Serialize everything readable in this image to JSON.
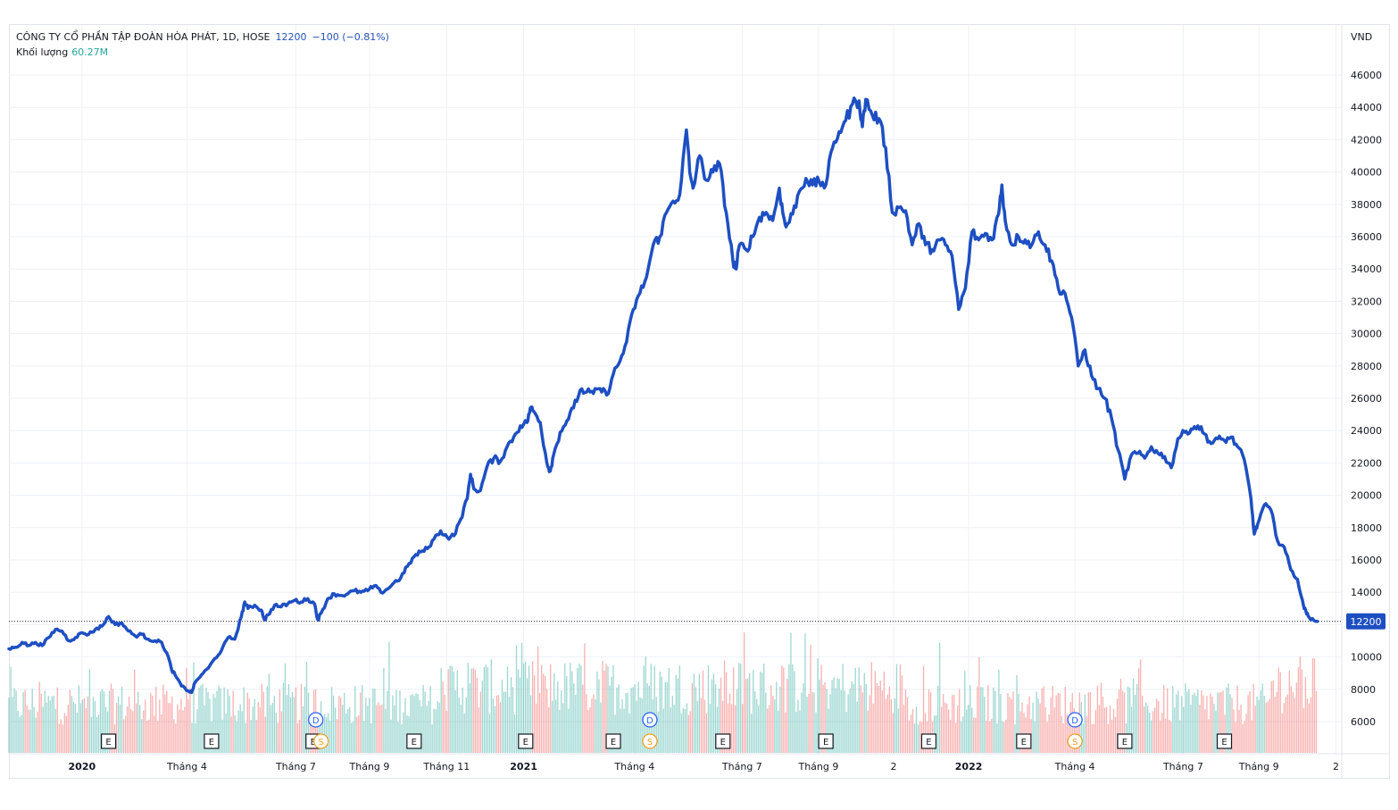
{
  "legend": {
    "title": "CÔNG TY CỔ PHẦN TẬP ĐOÀN HÒA PHÁT, 1D, HOSE",
    "last_price": "12200",
    "change": "−100 (−0.81%)",
    "volume_label": "Khối lượng",
    "volume_value": "60.27M"
  },
  "colors": {
    "line": "#1e4fc2",
    "grid": "#eef1f6",
    "vol_up": "#26a69a",
    "vol_down": "#ef5350",
    "price_label_bg": "#1e4fc2",
    "dividend_marker": "#2962ff",
    "split_marker": "#f0a020"
  },
  "chart_data": {
    "type": "line",
    "title": "CÔNG TY CỔ PHẦN TẬP ĐOÀN HÒA PHÁT, 1D, HOSE",
    "currency": "VND",
    "ylim": [
      3700,
      47600
    ],
    "yticks": [
      6000,
      8000,
      10000,
      12000,
      14000,
      16000,
      18000,
      20000,
      22000,
      24000,
      26000,
      28000,
      30000,
      32000,
      34000,
      36000,
      38000,
      40000,
      42000,
      44000,
      46000
    ],
    "current_price": 12200,
    "current_price_label": "12200",
    "time_range": [
      "2019-11",
      "2022-11"
    ],
    "x_labels": [
      {
        "t": 0.11,
        "label": "2020",
        "bold": true
      },
      {
        "t": 0.268,
        "label": "Tháng 4",
        "bold": false
      },
      {
        "t": 0.432,
        "label": "Tháng 7",
        "bold": false
      },
      {
        "t": 0.543,
        "label": "Tháng 9",
        "bold": false
      },
      {
        "t": 0.659,
        "label": "Tháng 11",
        "bold": false
      },
      {
        "t": 0.775,
        "label": "2021",
        "bold": true
      },
      {
        "t": 0.942,
        "label": "Tháng 4",
        "bold": false
      },
      {
        "t": 1.104,
        "label": "Tháng 7",
        "bold": false
      },
      {
        "t": 1.219,
        "label": "Tháng 9",
        "bold": false
      },
      {
        "t": 1.332,
        "label": "2",
        "bold": false
      },
      {
        "t": 1.445,
        "label": "2022",
        "bold": true
      },
      {
        "t": 1.605,
        "label": "Tháng 4",
        "bold": false
      },
      {
        "t": 1.768,
        "label": "Tháng 7",
        "bold": false
      },
      {
        "t": 1.882,
        "label": "Tháng 9",
        "bold": false
      },
      {
        "t": 1.998,
        "label": "2",
        "bold": false
      }
    ],
    "price_series": [
      [
        0.0,
        10500
      ],
      [
        0.01,
        10600
      ],
      [
        0.02,
        10900
      ],
      [
        0.03,
        10700
      ],
      [
        0.04,
        10900
      ],
      [
        0.05,
        10700
      ],
      [
        0.06,
        11200
      ],
      [
        0.07,
        11700
      ],
      [
        0.08,
        11600
      ],
      [
        0.09,
        11000
      ],
      [
        0.1,
        11200
      ],
      [
        0.11,
        11500
      ],
      [
        0.12,
        11400
      ],
      [
        0.13,
        11700
      ],
      [
        0.14,
        11900
      ],
      [
        0.15,
        12500
      ],
      [
        0.16,
        12000
      ],
      [
        0.17,
        12100
      ],
      [
        0.18,
        11600
      ],
      [
        0.19,
        11300
      ],
      [
        0.2,
        11400
      ],
      [
        0.21,
        11100
      ],
      [
        0.22,
        11000
      ],
      [
        0.23,
        10900
      ],
      [
        0.24,
        10000
      ],
      [
        0.245,
        9200
      ],
      [
        0.25,
        8900
      ],
      [
        0.26,
        8200
      ],
      [
        0.27,
        7900
      ],
      [
        0.275,
        7800
      ],
      [
        0.28,
        8400
      ],
      [
        0.29,
        8900
      ],
      [
        0.3,
        9300
      ],
      [
        0.31,
        9900
      ],
      [
        0.32,
        10400
      ],
      [
        0.33,
        11200
      ],
      [
        0.34,
        11100
      ],
      [
        0.35,
        12500
      ],
      [
        0.355,
        13400
      ],
      [
        0.36,
        13000
      ],
      [
        0.37,
        13200
      ],
      [
        0.38,
        12900
      ],
      [
        0.385,
        12300
      ],
      [
        0.39,
        12600
      ],
      [
        0.4,
        13200
      ],
      [
        0.41,
        13100
      ],
      [
        0.42,
        13300
      ],
      [
        0.43,
        13500
      ],
      [
        0.44,
        13400
      ],
      [
        0.45,
        13600
      ],
      [
        0.46,
        13300
      ],
      [
        0.465,
        12300
      ],
      [
        0.47,
        12700
      ],
      [
        0.48,
        13600
      ],
      [
        0.49,
        13900
      ],
      [
        0.5,
        13800
      ],
      [
        0.51,
        13900
      ],
      [
        0.52,
        14100
      ],
      [
        0.53,
        14000
      ],
      [
        0.54,
        14100
      ],
      [
        0.55,
        14400
      ],
      [
        0.56,
        14000
      ],
      [
        0.57,
        14200
      ],
      [
        0.58,
        14600
      ],
      [
        0.59,
        14900
      ],
      [
        0.6,
        15600
      ],
      [
        0.61,
        16200
      ],
      [
        0.62,
        16500
      ],
      [
        0.63,
        16700
      ],
      [
        0.64,
        17300
      ],
      [
        0.65,
        17800
      ],
      [
        0.66,
        17400
      ],
      [
        0.67,
        17500
      ],
      [
        0.68,
        18500
      ],
      [
        0.69,
        19800
      ],
      [
        0.695,
        21300
      ],
      [
        0.7,
        20400
      ],
      [
        0.71,
        20300
      ],
      [
        0.72,
        21800
      ],
      [
        0.73,
        22300
      ],
      [
        0.74,
        22100
      ],
      [
        0.75,
        23000
      ],
      [
        0.76,
        23600
      ],
      [
        0.77,
        24300
      ],
      [
        0.78,
        24500
      ],
      [
        0.785,
        25400
      ],
      [
        0.79,
        25200
      ],
      [
        0.8,
        24500
      ],
      [
        0.81,
        22000
      ],
      [
        0.815,
        21500
      ],
      [
        0.82,
        22500
      ],
      [
        0.83,
        23900
      ],
      [
        0.84,
        24600
      ],
      [
        0.85,
        25400
      ],
      [
        0.86,
        26500
      ],
      [
        0.87,
        26400
      ],
      [
        0.88,
        26300
      ],
      [
        0.89,
        26600
      ],
      [
        0.9,
        26200
      ],
      [
        0.91,
        27500
      ],
      [
        0.92,
        28300
      ],
      [
        0.93,
        29500
      ],
      [
        0.94,
        31500
      ],
      [
        0.95,
        32500
      ],
      [
        0.96,
        33500
      ],
      [
        0.97,
        35500
      ],
      [
        0.98,
        36000
      ],
      [
        0.99,
        37500
      ],
      [
        1.0,
        38200
      ],
      [
        1.01,
        38600
      ],
      [
        1.02,
        42600
      ],
      [
        1.025,
        40000
      ],
      [
        1.03,
        39000
      ],
      [
        1.04,
        41000
      ],
      [
        1.05,
        39500
      ],
      [
        1.06,
        40000
      ],
      [
        1.07,
        40500
      ],
      [
        1.08,
        37500
      ],
      [
        1.09,
        34500
      ],
      [
        1.095,
        34000
      ],
      [
        1.1,
        35500
      ],
      [
        1.11,
        35200
      ],
      [
        1.12,
        36000
      ],
      [
        1.13,
        37200
      ],
      [
        1.14,
        37500
      ],
      [
        1.15,
        37000
      ],
      [
        1.16,
        39000
      ],
      [
        1.165,
        37500
      ],
      [
        1.17,
        36600
      ],
      [
        1.18,
        37400
      ],
      [
        1.19,
        38800
      ],
      [
        1.2,
        39600
      ],
      [
        1.21,
        39200
      ],
      [
        1.22,
        39400
      ],
      [
        1.23,
        39200
      ],
      [
        1.24,
        41500
      ],
      [
        1.25,
        42500
      ],
      [
        1.26,
        43200
      ],
      [
        1.27,
        44200
      ],
      [
        1.28,
        44400
      ],
      [
        1.285,
        42800
      ],
      [
        1.29,
        44500
      ],
      [
        1.3,
        43500
      ],
      [
        1.31,
        43300
      ],
      [
        1.32,
        41500
      ],
      [
        1.33,
        37500
      ],
      [
        1.34,
        37800
      ],
      [
        1.35,
        37600
      ],
      [
        1.36,
        35500
      ],
      [
        1.37,
        36800
      ],
      [
        1.38,
        35500
      ],
      [
        1.39,
        35200
      ],
      [
        1.4,
        35800
      ],
      [
        1.41,
        35500
      ],
      [
        1.42,
        34800
      ],
      [
        1.43,
        31500
      ],
      [
        1.44,
        32800
      ],
      [
        1.45,
        36300
      ],
      [
        1.46,
        35800
      ],
      [
        1.47,
        36200
      ],
      [
        1.48,
        35800
      ],
      [
        1.49,
        37400
      ],
      [
        1.495,
        39200
      ],
      [
        1.5,
        37000
      ],
      [
        1.51,
        35500
      ],
      [
        1.52,
        36000
      ],
      [
        1.53,
        35800
      ],
      [
        1.54,
        35500
      ],
      [
        1.55,
        36300
      ],
      [
        1.56,
        35500
      ],
      [
        1.57,
        34500
      ],
      [
        1.58,
        32800
      ],
      [
        1.59,
        32500
      ],
      [
        1.6,
        31000
      ],
      [
        1.61,
        28000
      ],
      [
        1.62,
        29000
      ],
      [
        1.63,
        27400
      ],
      [
        1.64,
        26600
      ],
      [
        1.65,
        26000
      ],
      [
        1.66,
        24800
      ],
      [
        1.67,
        22800
      ],
      [
        1.68,
        21000
      ],
      [
        1.69,
        22500
      ],
      [
        1.7,
        22600
      ],
      [
        1.71,
        22300
      ],
      [
        1.72,
        23000
      ],
      [
        1.73,
        22600
      ],
      [
        1.74,
        22400
      ],
      [
        1.75,
        21700
      ],
      [
        1.76,
        23500
      ],
      [
        1.77,
        23900
      ],
      [
        1.78,
        24100
      ],
      [
        1.79,
        24300
      ],
      [
        1.8,
        23800
      ],
      [
        1.81,
        23200
      ],
      [
        1.82,
        23500
      ],
      [
        1.83,
        23400
      ],
      [
        1.84,
        23600
      ],
      [
        1.85,
        23000
      ],
      [
        1.86,
        22200
      ],
      [
        1.87,
        19800
      ],
      [
        1.875,
        17600
      ],
      [
        1.88,
        18200
      ],
      [
        1.89,
        19400
      ],
      [
        1.9,
        19100
      ],
      [
        1.91,
        17200
      ],
      [
        1.92,
        16800
      ],
      [
        1.93,
        15400
      ],
      [
        1.94,
        14800
      ],
      [
        1.95,
        13000
      ],
      [
        1.955,
        12700
      ],
      [
        1.96,
        12300
      ],
      [
        1.97,
        12200
      ]
    ],
    "volume_ylim": [
      0,
      100
    ],
    "volume_series_note": "volume histogram, relative heights",
    "volume_peaks": [
      [
        0.69,
        48
      ],
      [
        0.85,
        37
      ],
      [
        1.08,
        43
      ],
      [
        1.335,
        29
      ],
      [
        1.46,
        51
      ],
      [
        1.95,
        24
      ]
    ],
    "events": [
      {
        "t": 0.15,
        "type": "E"
      },
      {
        "t": 0.305,
        "type": "E"
      },
      {
        "t": 0.458,
        "type": "E"
      },
      {
        "t": 0.462,
        "type": "D"
      },
      {
        "t": 0.47,
        "type": "S"
      },
      {
        "t": 0.61,
        "type": "E"
      },
      {
        "t": 0.778,
        "type": "E"
      },
      {
        "t": 0.91,
        "type": "E"
      },
      {
        "t": 0.965,
        "type": "D"
      },
      {
        "t": 0.965,
        "type": "S"
      },
      {
        "t": 1.075,
        "type": "E"
      },
      {
        "t": 1.23,
        "type": "E"
      },
      {
        "t": 1.385,
        "type": "E"
      },
      {
        "t": 1.528,
        "type": "E"
      },
      {
        "t": 1.605,
        "type": "D"
      },
      {
        "t": 1.605,
        "type": "S"
      },
      {
        "t": 1.68,
        "type": "E"
      },
      {
        "t": 1.83,
        "type": "E"
      }
    ]
  }
}
